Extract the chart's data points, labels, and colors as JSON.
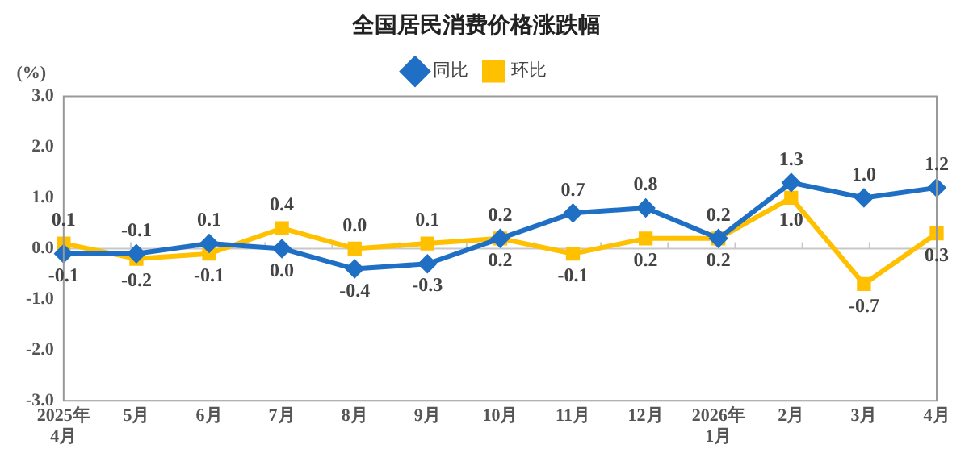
{
  "chart_data": {
    "type": "line",
    "title": "全国居民消费价格涨跌幅",
    "ylabel": "(%)",
    "categories": [
      "2025年\n4月",
      "5月",
      "6月",
      "7月",
      "8月",
      "9月",
      "10月",
      "11月",
      "12月",
      "2026年\n1月",
      "2月",
      "3月",
      "4月"
    ],
    "series": [
      {
        "name": "同比",
        "color": "#1f6fc5",
        "marker": "diamond",
        "values": [
          -0.1,
          -0.1,
          0.1,
          0.0,
          -0.4,
          -0.3,
          0.2,
          0.7,
          0.8,
          0.2,
          1.3,
          1.0,
          1.2
        ],
        "value_labels": [
          "-0.1",
          "-0.1",
          "0.1",
          "0.0",
          "-0.4",
          "-0.3",
          "0.2",
          "0.7",
          "0.8",
          "0.2",
          "1.3",
          "1.0",
          "1.2"
        ]
      },
      {
        "name": "环比",
        "color": "#ffc000",
        "marker": "square",
        "values": [
          0.1,
          -0.2,
          -0.1,
          0.4,
          0.0,
          0.1,
          0.2,
          -0.1,
          0.2,
          0.2,
          1.0,
          -0.7,
          0.3
        ],
        "value_labels": [
          "0.1",
          "-0.2",
          "-0.1",
          "0.4",
          "0.0",
          "0.1",
          "0.2",
          "-0.1",
          "0.2",
          "0.2",
          "1.0",
          "-0.7",
          "0.3"
        ]
      }
    ],
    "ylim": [
      -3,
      3
    ],
    "yticks": [
      {
        "value": -3,
        "label": "-3.0"
      },
      {
        "value": -2,
        "label": "-2.0"
      },
      {
        "value": -1,
        "label": "-1.0"
      },
      {
        "value": 0,
        "label": "0.0"
      },
      {
        "value": 1,
        "label": "1.0"
      },
      {
        "value": 2,
        "label": "2.0"
      },
      {
        "value": 3,
        "label": "3.0"
      }
    ],
    "ref_lines": [
      {
        "axis": "y",
        "value": 0,
        "color": "#c8c8c8"
      }
    ],
    "grid": false,
    "legend": "top",
    "line_style": "solid"
  }
}
